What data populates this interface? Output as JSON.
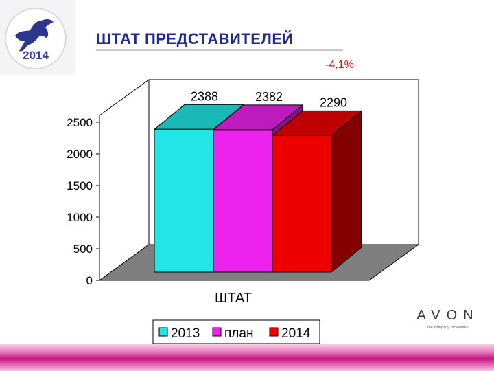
{
  "slide": {
    "title": "ШТАТ ПРЕДСТАВИТЕЛЕЙ",
    "change_label": "-4,1%",
    "logo_year": "2014",
    "brand": "AVON",
    "brand_tagline": "the company for women"
  },
  "colors": {
    "title": "#1f2c8c",
    "change": "#cc1010",
    "series": [
      "#22e6e6",
      "#ee22ee",
      "#ee0000"
    ],
    "floor": "#7f7f7f"
  },
  "chart_data": {
    "type": "bar",
    "categories": [
      "ШТАТ"
    ],
    "series": [
      {
        "name": "2013",
        "values": [
          2388
        ]
      },
      {
        "name": "план",
        "values": [
          2382
        ]
      },
      {
        "name": "2014",
        "values": [
          2290
        ]
      }
    ],
    "data_labels": [
      "2388",
      "2382",
      "2290"
    ],
    "y_ticks": [
      "0",
      "500",
      "1000",
      "1500",
      "2000",
      "2500"
    ],
    "ylim": [
      0,
      2500
    ],
    "xlabel": "ШТАТ",
    "legend": [
      "2013",
      "план",
      "2014"
    ],
    "legend_position": "bottom",
    "three_d": true,
    "grid": false
  }
}
